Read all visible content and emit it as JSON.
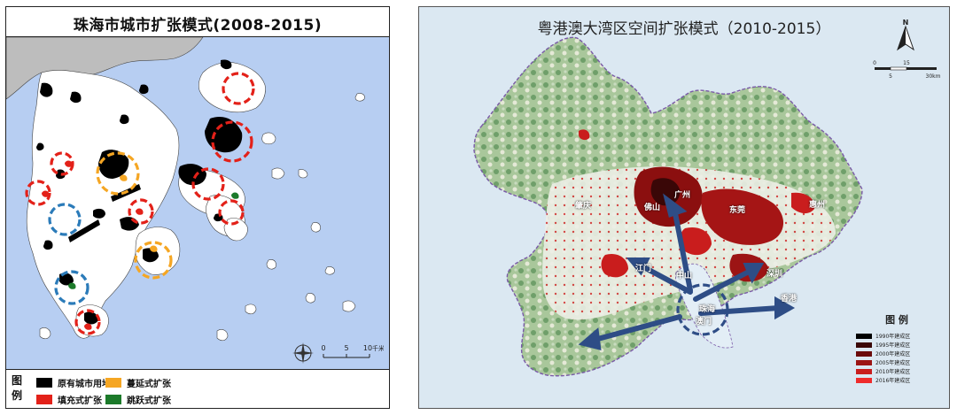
{
  "left": {
    "title": "珠海市城市扩张模式(2008-2015)",
    "legend_heading": "图例",
    "legend": [
      {
        "label": "原有城市用地",
        "color": "#000000"
      },
      {
        "label": "蔓延式扩张",
        "color": "#f5a623"
      },
      {
        "label": "填充式扩张",
        "color": "#e32119"
      },
      {
        "label": "跳跃式扩张",
        "color": "#1c7a2a"
      }
    ],
    "scale": {
      "ticks": [
        "0",
        "5",
        "10"
      ],
      "unit": "千米"
    }
  },
  "right": {
    "title": "粤港澳大湾区空间扩张模式（2010-2015）",
    "north": "N",
    "scale": {
      "top_ticks": [
        "0",
        "15"
      ],
      "bottom_ticks": [
        "5",
        "30km"
      ]
    },
    "legend_heading": "图 例",
    "legend": [
      {
        "label": "1990年建成区",
        "color": "#000000"
      },
      {
        "label": "1995年建成区",
        "color": "#3a0707"
      },
      {
        "label": "2000年建成区",
        "color": "#6b0b0b"
      },
      {
        "label": "2005年建成区",
        "color": "#9c1414"
      },
      {
        "label": "2010年建成区",
        "color": "#c91d1d"
      },
      {
        "label": "2016年建成区",
        "color": "#ef2b2b"
      }
    ],
    "cities": {
      "zhaoqing": "肇庆",
      "guangzhou": "广州",
      "foshan": "佛山",
      "dongguan": "东莞",
      "huizhou": "惠州",
      "jiangmen": "江门",
      "zhongshan": "中山",
      "shenzhen": "深圳",
      "hongkong": "香港",
      "zhuhai": "珠海",
      "macao": "澳门"
    }
  }
}
